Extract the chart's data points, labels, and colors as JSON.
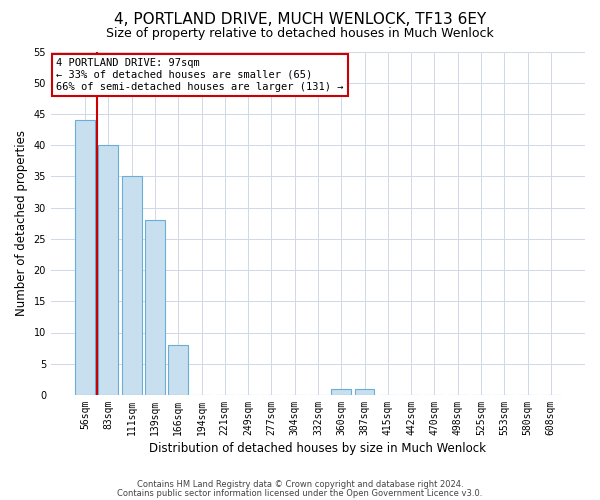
{
  "title": "4, PORTLAND DRIVE, MUCH WENLOCK, TF13 6EY",
  "subtitle": "Size of property relative to detached houses in Much Wenlock",
  "xlabel": "Distribution of detached houses by size in Much Wenlock",
  "ylabel": "Number of detached properties",
  "bar_labels": [
    "56sqm",
    "83sqm",
    "111sqm",
    "139sqm",
    "166sqm",
    "194sqm",
    "221sqm",
    "249sqm",
    "277sqm",
    "304sqm",
    "332sqm",
    "360sqm",
    "387sqm",
    "415sqm",
    "442sqm",
    "470sqm",
    "498sqm",
    "525sqm",
    "553sqm",
    "580sqm",
    "608sqm"
  ],
  "bar_values": [
    44,
    40,
    35,
    28,
    8,
    0,
    0,
    0,
    0,
    0,
    0,
    1,
    1,
    0,
    0,
    0,
    0,
    0,
    0,
    0,
    0
  ],
  "bar_color": "#c8dff0",
  "bar_edge_color": "#6aaed6",
  "vline_x_idx": 0.5,
  "vline_color": "#cc0000",
  "annotation_title": "4 PORTLAND DRIVE: 97sqm",
  "annotation_line1": "← 33% of detached houses are smaller (65)",
  "annotation_line2": "66% of semi-detached houses are larger (131) →",
  "annotation_box_color": "#ffffff",
  "annotation_box_edge_color": "#cc0000",
  "ylim": [
    0,
    55
  ],
  "yticks": [
    0,
    5,
    10,
    15,
    20,
    25,
    30,
    35,
    40,
    45,
    50,
    55
  ],
  "footer1": "Contains HM Land Registry data © Crown copyright and database right 2024.",
  "footer2": "Contains public sector information licensed under the Open Government Licence v3.0.",
  "bg_color": "#ffffff",
  "grid_color": "#d0d8e8",
  "title_fontsize": 11,
  "subtitle_fontsize": 9,
  "axis_label_fontsize": 8.5,
  "tick_fontsize": 7,
  "annotation_fontsize": 7.5,
  "footer_fontsize": 6
}
